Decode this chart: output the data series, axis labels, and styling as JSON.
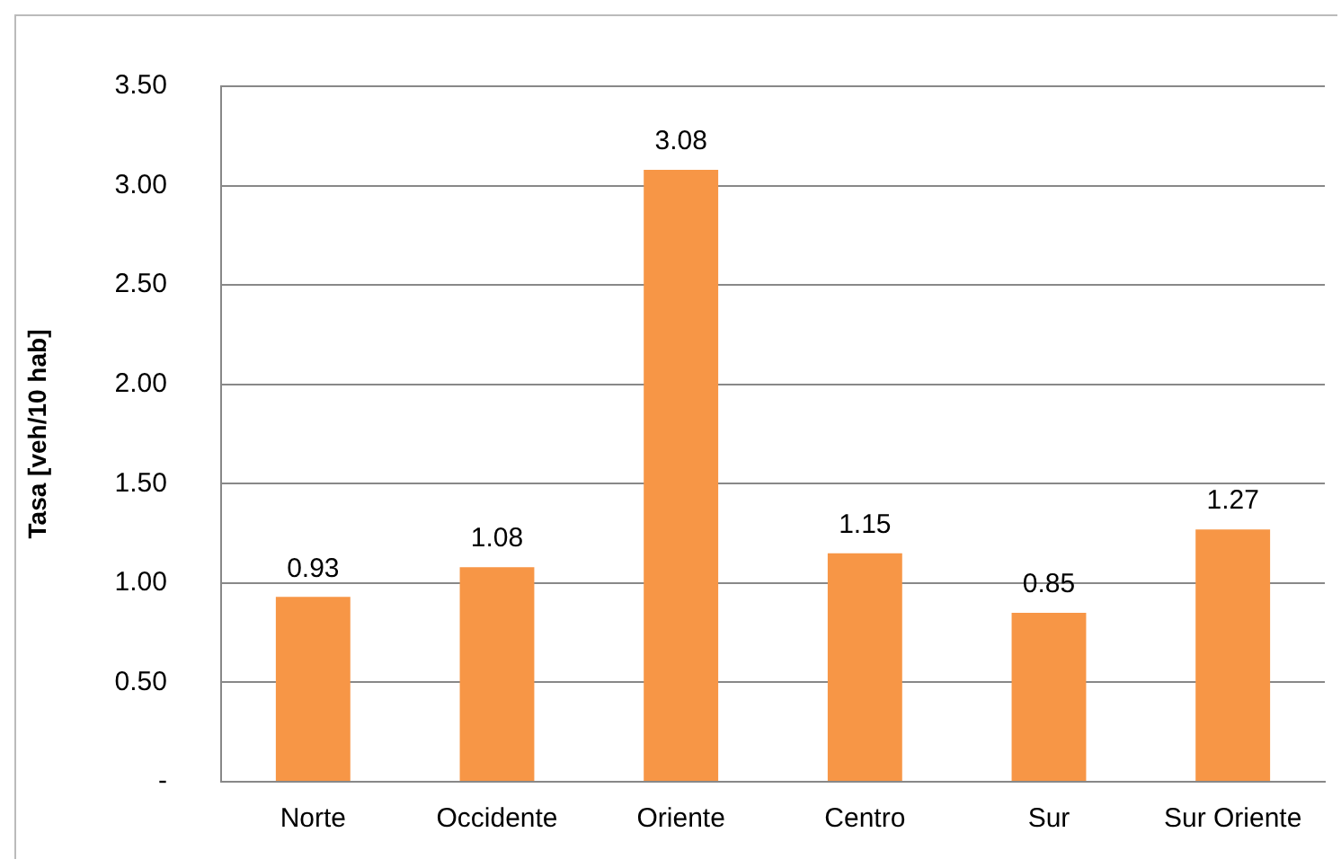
{
  "chart_data": {
    "type": "bar",
    "ylabel": "Tasa [veh/10 hab]",
    "categories": [
      "Norte",
      "Occidente",
      "Oriente",
      "Centro",
      "Sur",
      "Sur Oriente"
    ],
    "values": [
      0.93,
      1.08,
      3.08,
      1.15,
      0.85,
      1.27
    ],
    "color": "#f79646",
    "ylim": [
      0,
      3.5
    ],
    "yticks": [
      {
        "value": 0,
        "label": "-"
      },
      {
        "value": 0.5,
        "label": "0.50"
      },
      {
        "value": 1,
        "label": "1.00"
      },
      {
        "value": 1.5,
        "label": "1.50"
      },
      {
        "value": 2,
        "label": "2.00"
      },
      {
        "value": 2.5,
        "label": "2.50"
      },
      {
        "value": 3,
        "label": "3.00"
      },
      {
        "value": 3.5,
        "label": "3.50"
      }
    ],
    "grid": "y",
    "data_labels": true,
    "legend": false
  }
}
